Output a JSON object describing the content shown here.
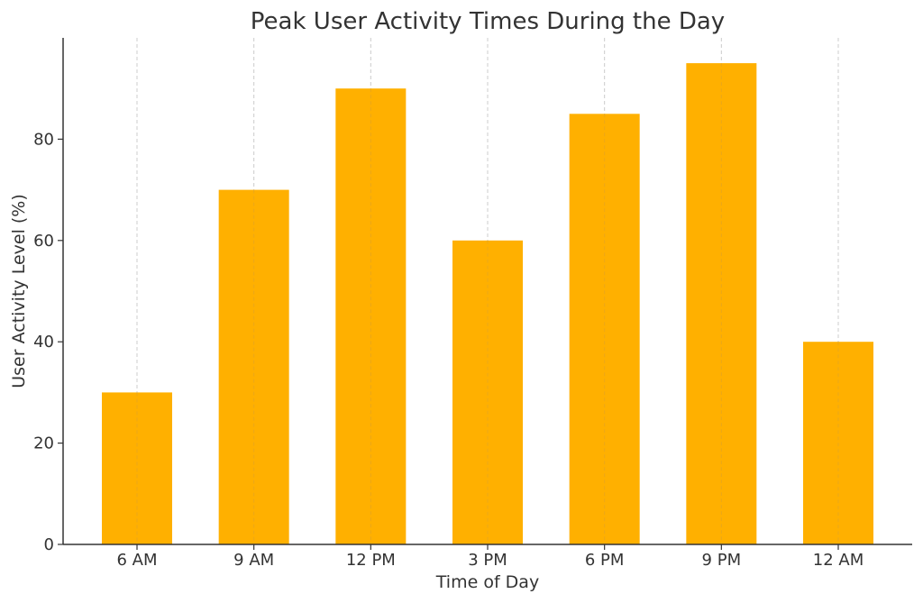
{
  "chart_data": {
    "type": "bar",
    "title": "Peak User Activity Times During the Day",
    "xlabel": "Time of Day",
    "ylabel": "User Activity Level (%)",
    "categories": [
      "6 AM",
      "9 AM",
      "12 PM",
      "3 PM",
      "6 PM",
      "9 PM",
      "12 AM"
    ],
    "values": [
      30,
      70,
      90,
      60,
      85,
      95,
      40
    ],
    "ylim": [
      0,
      100
    ],
    "yticks": [
      0,
      20,
      40,
      60,
      80
    ],
    "grid": "x-dashed",
    "legend": "none",
    "bar_color": "#FFB000",
    "grid_color": "#CCCCCC",
    "axis_color": "#333333",
    "text_color": "#333333"
  }
}
